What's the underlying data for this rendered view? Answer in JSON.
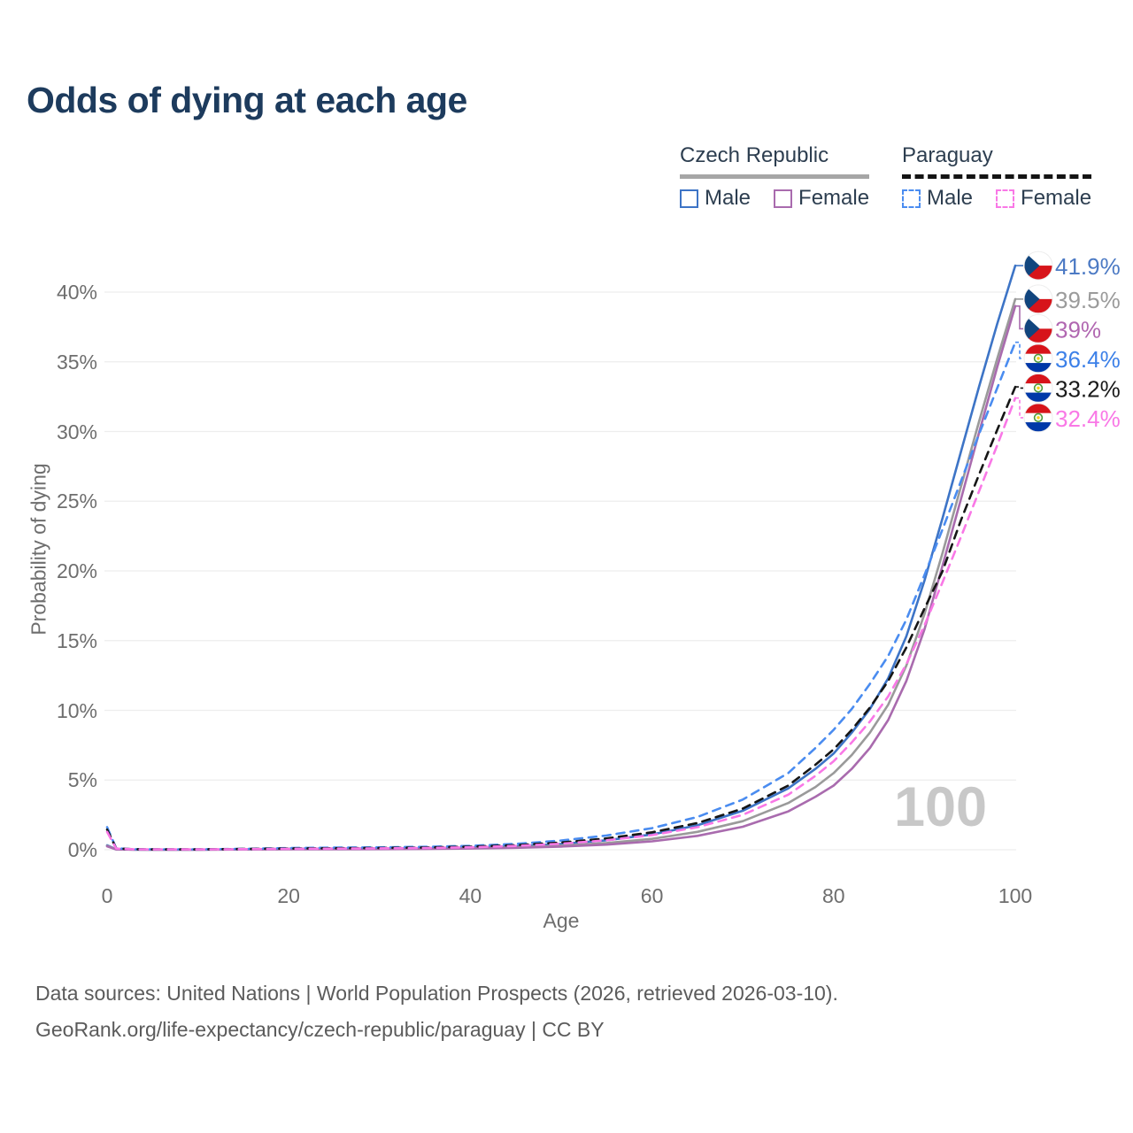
{
  "title": "Odds of dying at each age",
  "legend": {
    "position": "top-right",
    "groups": [
      {
        "name": "Czech Republic",
        "style": "solid",
        "underline_color": "#a6a6a6",
        "items": [
          {
            "label": "Male",
            "series": "czech-male"
          },
          {
            "label": "Female",
            "series": "czech-female"
          }
        ]
      },
      {
        "name": "Paraguay",
        "style": "dashed",
        "underline_color": "#141414",
        "items": [
          {
            "label": "Male",
            "series": "paraguay-male"
          },
          {
            "label": "Female",
            "series": "paraguay-female"
          }
        ]
      }
    ]
  },
  "chart_data": {
    "type": "line",
    "title": "Odds of dying at each age",
    "xlabel": "Age",
    "ylabel": "Probability of dying",
    "xlim": [
      0,
      100
    ],
    "ylim": [
      0,
      43
    ],
    "grid": true,
    "x_ticks": [
      0,
      20,
      40,
      60,
      80,
      100
    ],
    "y_ticks": [
      "0%",
      "5%",
      "10%",
      "15%",
      "20%",
      "25%",
      "30%",
      "35%",
      "40%"
    ],
    "hover_age_label": "100",
    "ages": [
      0,
      1,
      3,
      5,
      10,
      15,
      20,
      25,
      30,
      35,
      40,
      45,
      50,
      55,
      60,
      65,
      70,
      75,
      78,
      80,
      82,
      84,
      86,
      88,
      90,
      92,
      94,
      96,
      98,
      100
    ],
    "series": [
      {
        "id": "czech-male",
        "country": "Czech Republic",
        "sex": "Male",
        "flag": "cz",
        "style": "solid",
        "color": "#3d74c6",
        "label_color": "#4c7ac4",
        "end_label": "41.9%",
        "values": [
          0.32,
          0.03,
          0.015,
          0.012,
          0.012,
          0.03,
          0.07,
          0.08,
          0.09,
          0.11,
          0.16,
          0.25,
          0.42,
          0.68,
          1.1,
          1.75,
          2.8,
          4.4,
          5.8,
          6.9,
          8.4,
          10.1,
          12.3,
          15.3,
          19.3,
          23.8,
          28.5,
          33.2,
          37.7,
          41.9
        ]
      },
      {
        "id": "czech-combined",
        "country": "Czech Republic",
        "sex": "Both",
        "flag": "cz",
        "style": "solid",
        "color": "#9a9a9a",
        "label_color": "#9b9b9b",
        "end_label": "39.5%",
        "values": [
          0.28,
          0.025,
          0.012,
          0.01,
          0.01,
          0.022,
          0.045,
          0.05,
          0.06,
          0.08,
          0.11,
          0.18,
          0.3,
          0.48,
          0.78,
          1.28,
          2.05,
          3.35,
          4.5,
          5.5,
          6.8,
          8.4,
          10.4,
          13.2,
          16.9,
          21.3,
          26.0,
          30.7,
          35.2,
          39.5
        ]
      },
      {
        "id": "czech-female",
        "country": "Czech Republic",
        "sex": "Female",
        "flag": "cz",
        "style": "solid",
        "color": "#a96bae",
        "label_color": "#b167b1",
        "end_label": "39%",
        "values": [
          0.25,
          0.02,
          0.01,
          0.009,
          0.009,
          0.016,
          0.03,
          0.035,
          0.045,
          0.06,
          0.09,
          0.14,
          0.23,
          0.37,
          0.6,
          1.0,
          1.65,
          2.75,
          3.8,
          4.6,
          5.8,
          7.3,
          9.3,
          12.1,
          15.8,
          20.4,
          25.1,
          29.9,
          34.6,
          39.0
        ]
      },
      {
        "id": "paraguay-male",
        "country": "Paraguay",
        "sex": "Male",
        "flag": "py",
        "style": "dashed",
        "color": "#4a8cf0",
        "label_color": "#3c80e8",
        "end_label": "36.4%",
        "values": [
          1.62,
          0.1,
          0.04,
          0.032,
          0.032,
          0.065,
          0.12,
          0.15,
          0.17,
          0.21,
          0.28,
          0.42,
          0.66,
          1.02,
          1.55,
          2.35,
          3.6,
          5.5,
          7.3,
          8.6,
          10.1,
          11.9,
          13.9,
          16.5,
          19.7,
          23.0,
          26.4,
          29.8,
          33.1,
          36.4
        ]
      },
      {
        "id": "paraguay-combined",
        "country": "Paraguay",
        "sex": "Both",
        "flag": "py",
        "style": "dashed",
        "color": "#161616",
        "label_color": "#1a1a1a",
        "end_label": "33.2%",
        "values": [
          1.45,
          0.09,
          0.035,
          0.028,
          0.028,
          0.055,
          0.09,
          0.11,
          0.13,
          0.16,
          0.22,
          0.33,
          0.52,
          0.81,
          1.25,
          1.92,
          2.95,
          4.6,
          6.1,
          7.2,
          8.6,
          10.2,
          12.1,
          14.5,
          17.3,
          20.0,
          23.6,
          26.9,
          30.1,
          33.2
        ]
      },
      {
        "id": "paraguay-female",
        "country": "Paraguay",
        "sex": "Female",
        "flag": "py",
        "style": "dashed",
        "color": "#f978e6",
        "label_color": "#f978e6",
        "end_label": "32.4%",
        "values": [
          1.28,
          0.08,
          0.03,
          0.024,
          0.024,
          0.045,
          0.065,
          0.08,
          0.1,
          0.13,
          0.18,
          0.27,
          0.43,
          0.68,
          1.05,
          1.62,
          2.5,
          3.95,
          5.3,
          6.35,
          7.7,
          9.2,
          11.0,
          13.3,
          16.1,
          19.2,
          22.4,
          25.7,
          29.0,
          32.4
        ]
      }
    ]
  },
  "footer": {
    "line1": "Data sources: United Nations | World Population Prospects (2026, retrieved 2026-03-10).",
    "line2": "GeoRank.org/life-expectancy/czech-republic/paraguay | CC BY"
  }
}
